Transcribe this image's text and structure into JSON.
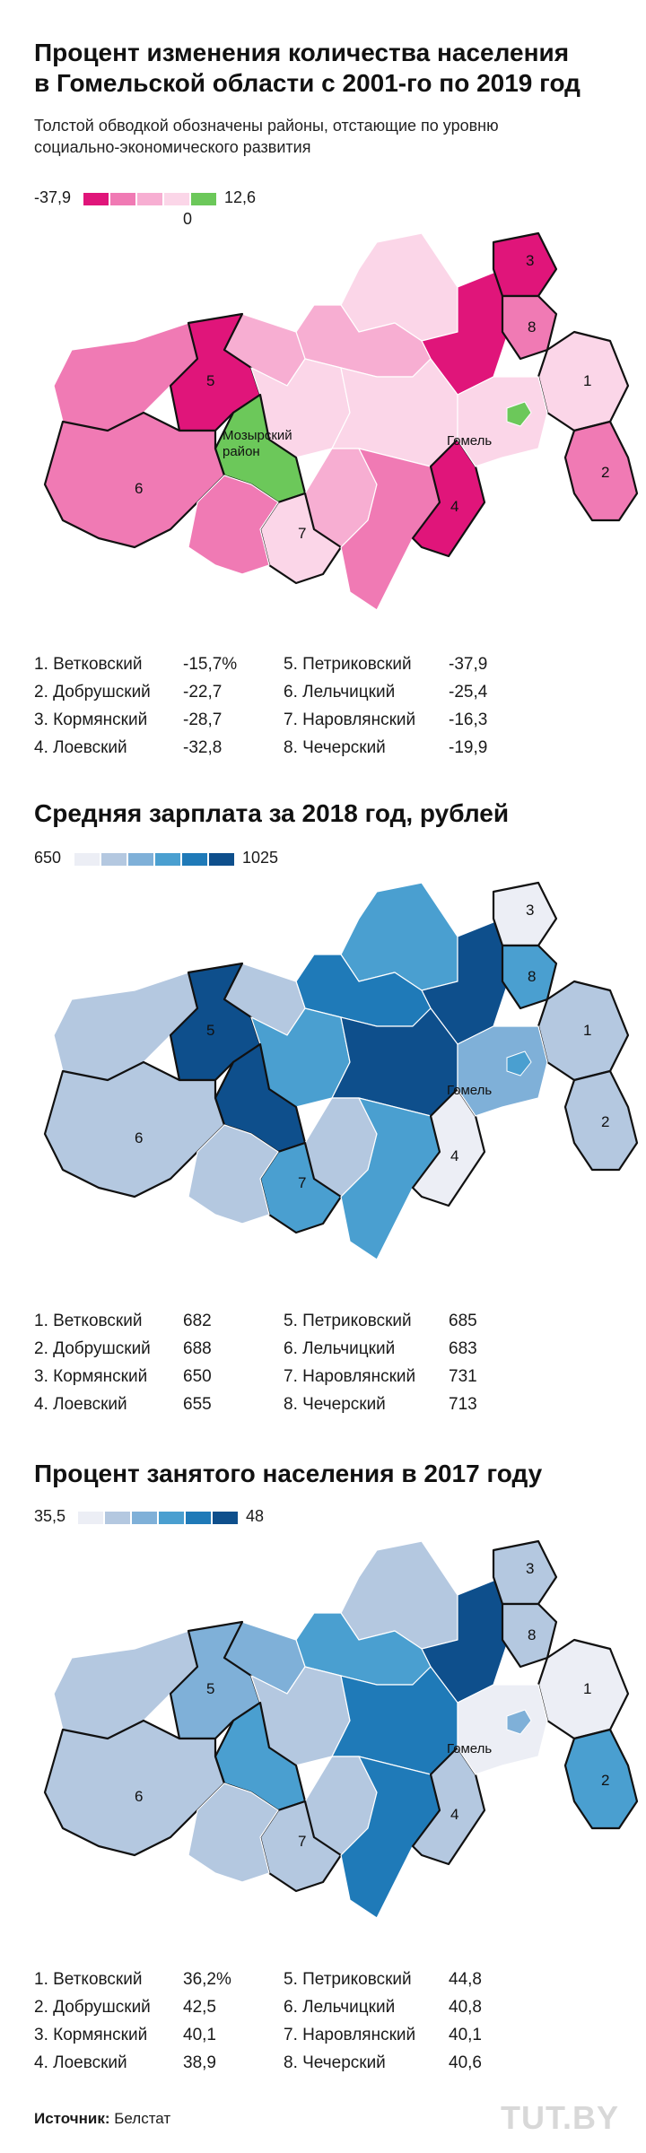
{
  "maps": [
    {
      "title_line1": "Процент изменения количества населения",
      "title_line2": "в Гомельской области с 2001-го по 2019 год",
      "subtitle_line1": "Толстой обводкой обозначены районы, отстающие по уровню",
      "subtitle_line2": "социально-экономического развития",
      "legend": {
        "min": "-37,9",
        "max": "12,6",
        "zero": "0",
        "colors": [
          "#e0157a",
          "#f07ab4",
          "#f7aed2",
          "#fbd6e8",
          "#6cc85a"
        ]
      },
      "labels": {
        "gomel": "Гомель",
        "mozyr1": "Мозырский",
        "mozyr2": "район"
      },
      "rows": [
        {
          "name": "1. Ветковский",
          "value": "-15,7%"
        },
        {
          "name": "2. Добрушский",
          "value": "-22,7"
        },
        {
          "name": "3. Кормянский",
          "value": "-28,7"
        },
        {
          "name": "4. Лоевский",
          "value": "-32,8"
        },
        {
          "name": "5. Петриковский",
          "value": "-37,9"
        },
        {
          "name": "6. Лельчицкий",
          "value": "-25,4"
        },
        {
          "name": "7. Наровлянский",
          "value": "-16,3"
        },
        {
          "name": "8. Чечерский",
          "value": "-19,9"
        }
      ]
    },
    {
      "title_line1": "Средняя зарплата за 2018 год, рублей",
      "legend": {
        "min": "650",
        "max": "1025",
        "colors": [
          "#eceef5",
          "#b4c8e0",
          "#7fb0d8",
          "#4a9fd0",
          "#1f7ab8",
          "#0e4f8c"
        ]
      },
      "labels": {
        "gomel": "Гомель"
      },
      "rows": [
        {
          "name": "1. Ветковский",
          "value": "682"
        },
        {
          "name": "2. Добрушский",
          "value": "688"
        },
        {
          "name": "3. Кормянский",
          "value": "650"
        },
        {
          "name": "4. Лоевский",
          "value": "655"
        },
        {
          "name": "5. Петриковский",
          "value": "685"
        },
        {
          "name": "6. Лельчицкий",
          "value": "683"
        },
        {
          "name": "7. Наровлянский",
          "value": "731"
        },
        {
          "name": "8. Чечерский",
          "value": "713"
        }
      ]
    },
    {
      "title_line1": "Процент занятого населения в 2017 году",
      "legend": {
        "min": "35,5",
        "max": "48",
        "colors": [
          "#eceef5",
          "#b4c8e0",
          "#7fb0d8",
          "#4a9fd0",
          "#1f7ab8",
          "#0e4f8c"
        ]
      },
      "labels": {
        "gomel": "Гомель"
      },
      "rows": [
        {
          "name": "1. Ветковский",
          "value": "36,2%"
        },
        {
          "name": "2. Добрушский",
          "value": "42,5"
        },
        {
          "name": "3. Кормянский",
          "value": "40,1"
        },
        {
          "name": "4. Лоевский",
          "value": "38,9"
        },
        {
          "name": "5. Петриковский",
          "value": "44,8"
        },
        {
          "name": "6. Лельчицкий",
          "value": "40,8"
        },
        {
          "name": "7. Наровлянский",
          "value": "40,1"
        },
        {
          "name": "8. Чечерский",
          "value": "40,6"
        }
      ]
    }
  ],
  "footer": {
    "label": "Источник:",
    "source": "Белстат"
  },
  "logo": "TUT.BY",
  "map_fills": [
    {
      "t": "#fbd6e8",
      "ne": "#e0157a",
      "n": "#f7aed2",
      "nw": "#f7aed2",
      "w": "#f07ab4",
      "p": "#e0157a",
      "l": "#f07ab4",
      "m": "#6cc85a",
      "c": "#fbd6e8",
      "s": "#f7aed2",
      "se": "#f07ab4",
      "e": "#fbd6e8",
      "g": "#fbd6e8",
      "d3": "#e0157a",
      "d8": "#f07ab4",
      "d1": "#fbd6e8",
      "d2": "#f07ab4",
      "d4": "#e0157a",
      "d7": "#fbd6e8",
      "d6": "#f07ab4",
      "d5": "#e0157a",
      "city": "#6cc85a"
    },
    {
      "t": "#4a9fd0",
      "ne": "#0e4f8c",
      "n": "#1f7ab8",
      "nw": "#b4c8e0",
      "w": "#b4c8e0",
      "p": "#0e4f8c",
      "l": "#b4c8e0",
      "m": "#0e4f8c",
      "c": "#4a9fd0",
      "s": "#b4c8e0",
      "se": "#4a9fd0",
      "e": "#0e4f8c",
      "g": "#7fb0d8",
      "d3": "#eceef5",
      "d8": "#4a9fd0",
      "d1": "#b4c8e0",
      "d2": "#b4c8e0",
      "d4": "#eceef5",
      "d7": "#4a9fd0",
      "d6": "#b4c8e0",
      "d5": "#b4c8e0",
      "city": "#4a9fd0"
    },
    {
      "t": "#b4c8e0",
      "ne": "#0e4f8c",
      "n": "#4a9fd0",
      "nw": "#7fb0d8",
      "w": "#b4c8e0",
      "p": "#7fb0d8",
      "l": "#b4c8e0",
      "m": "#4a9fd0",
      "c": "#b4c8e0",
      "s": "#b4c8e0",
      "se": "#1f7ab8",
      "e": "#1f7ab8",
      "g": "#eceef5",
      "d3": "#b4c8e0",
      "d8": "#b4c8e0",
      "d1": "#eceef5",
      "d2": "#4a9fd0",
      "d4": "#b4c8e0",
      "d7": "#b4c8e0",
      "d6": "#b4c8e0",
      "d5": "#1f7ab8",
      "city": "#7fb0d8"
    }
  ]
}
